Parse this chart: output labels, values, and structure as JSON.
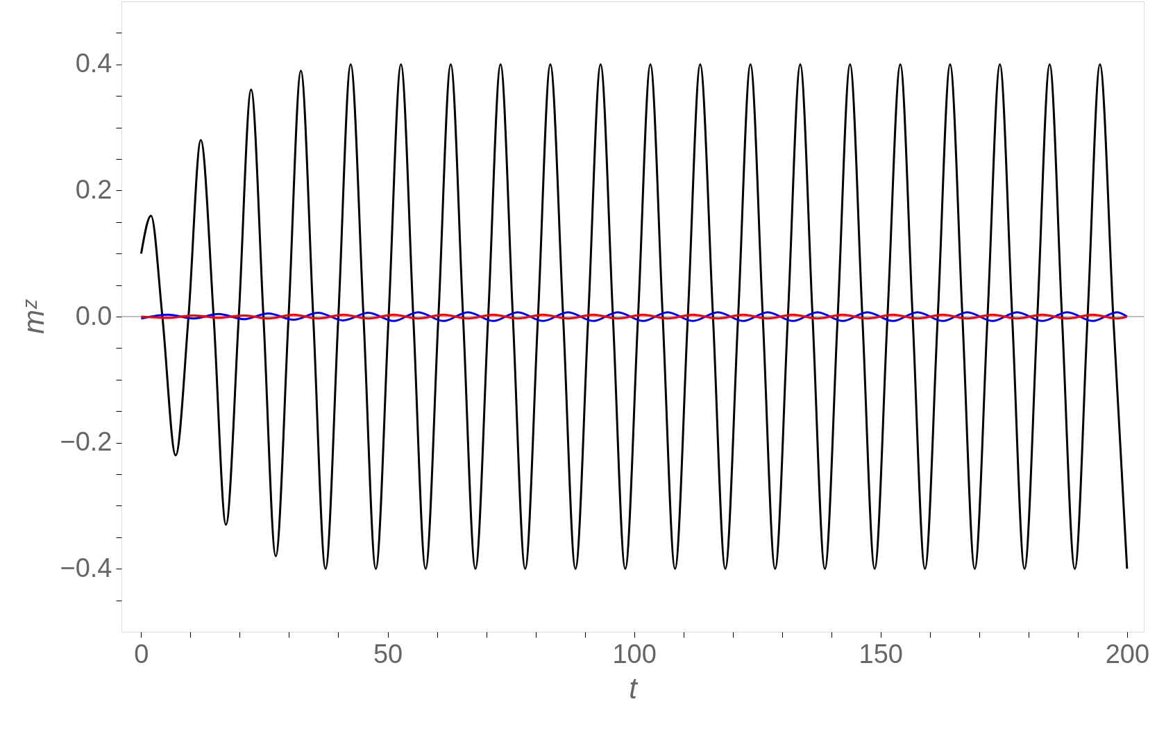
{
  "chart_data": {
    "type": "line",
    "xlabel": "t",
    "ylabel": "mᶻ",
    "xlim": [
      -4,
      203.4
    ],
    "ylim": [
      -0.5,
      0.5
    ],
    "xticks": [
      {
        "value": 0,
        "label": "0"
      },
      {
        "value": 10,
        "label": null
      },
      {
        "value": 20,
        "label": null
      },
      {
        "value": 30,
        "label": null
      },
      {
        "value": 40,
        "label": null
      },
      {
        "value": 50,
        "label": "50"
      },
      {
        "value": 60,
        "label": null
      },
      {
        "value": 70,
        "label": null
      },
      {
        "value": 80,
        "label": null
      },
      {
        "value": 90,
        "label": null
      },
      {
        "value": 100,
        "label": "100"
      },
      {
        "value": 110,
        "label": null
      },
      {
        "value": 120,
        "label": null
      },
      {
        "value": 130,
        "label": null
      },
      {
        "value": 140,
        "label": null
      },
      {
        "value": 150,
        "label": "150"
      },
      {
        "value": 160,
        "label": null
      },
      {
        "value": 170,
        "label": null
      },
      {
        "value": 180,
        "label": null
      },
      {
        "value": 190,
        "label": null
      },
      {
        "value": 200,
        "label": "200"
      }
    ],
    "yticks": [
      {
        "value": -0.45,
        "label": null
      },
      {
        "value": -0.4,
        "label": "−0.4"
      },
      {
        "value": -0.35,
        "label": null
      },
      {
        "value": -0.3,
        "label": null
      },
      {
        "value": -0.25,
        "label": null
      },
      {
        "value": -0.2,
        "label": "−0.2"
      },
      {
        "value": -0.15,
        "label": null
      },
      {
        "value": -0.1,
        "label": null
      },
      {
        "value": -0.05,
        "label": null
      },
      {
        "value": 0,
        "label": "0.0"
      },
      {
        "value": 0.05,
        "label": null
      },
      {
        "value": 0.1,
        "label": null
      },
      {
        "value": 0.15,
        "label": null
      },
      {
        "value": 0.2,
        "label": "0.2"
      },
      {
        "value": 0.25,
        "label": null
      },
      {
        "value": 0.3,
        "label": null
      },
      {
        "value": 0.35,
        "label": null
      },
      {
        "value": 0.4,
        "label": "0.4"
      },
      {
        "value": 0.45,
        "label": null
      }
    ],
    "marker": "none",
    "line_style": "solid",
    "ref_lines": [
      {
        "axis": "y",
        "value": 0,
        "label": null,
        "color": "#aaaaaa"
      }
    ],
    "series": [
      {
        "color": "#000000",
        "x": [
          0,
          2.0,
          4.3,
          7.0,
          9.6,
          12.1,
          14.7,
          17.2,
          19.8,
          22.3,
          24.8,
          27.3,
          29.9,
          32.4,
          34.9,
          37.4,
          40.0,
          42.5,
          45.1,
          47.6,
          50.2,
          52.7,
          55.2,
          57.7,
          60.3,
          62.8,
          65.3,
          67.8,
          70.4,
          72.9,
          75.4,
          77.9,
          80.5,
          83.0,
          85.6,
          88.1,
          90.7,
          93.2,
          95.7,
          98.2,
          100.8,
          103.3,
          105.8,
          108.3,
          110.9,
          113.4,
          116.0,
          118.5,
          121.1,
          123.6,
          126.1,
          128.6,
          131.2,
          133.7,
          136.2,
          138.7,
          141.3,
          143.8,
          146.3,
          148.8,
          151.4,
          154.0,
          156.5,
          159.0,
          161.6,
          164.1,
          166.6,
          169.1,
          171.7,
          174.2,
          176.7,
          179.2,
          181.8,
          184.3,
          186.8,
          189.4,
          192.0,
          194.5,
          197.2,
          200
        ],
        "values": [
          0.1,
          0.16,
          0,
          -0.22,
          0,
          0.28,
          0,
          -0.33,
          0,
          0.36,
          0,
          -0.38,
          0,
          0.39,
          0,
          -0.4,
          0,
          0.4,
          0,
          -0.4,
          0,
          0.4,
          0,
          -0.4,
          0,
          0.4,
          0,
          -0.4,
          0,
          0.4,
          0,
          -0.4,
          0,
          0.4,
          0,
          -0.4,
          0,
          0.4,
          0,
          -0.4,
          0,
          0.4,
          0,
          -0.4,
          0,
          0.4,
          0,
          -0.4,
          0,
          0.4,
          0,
          -0.4,
          0,
          0.4,
          0,
          -0.4,
          0,
          0.4,
          0,
          -0.4,
          0,
          0.4,
          0,
          -0.4,
          0,
          0.4,
          0,
          -0.4,
          0,
          0.4,
          0,
          -0.4,
          0,
          0.4,
          0,
          -0.4,
          0,
          0.4,
          0,
          -0.4
        ]
      },
      {
        "color": "#0000ff",
        "x": [
          0,
          5.5,
          10.6,
          15.7,
          20.8,
          25.8,
          30.9,
          35.9,
          41.0,
          46.1,
          51.2,
          56.2,
          61.3,
          66.3,
          71.4,
          76.4,
          81.5,
          86.6,
          91.7,
          96.7,
          101.8,
          106.8,
          111.9,
          117.0,
          122.1,
          127.1,
          132.2,
          137.2,
          142.3,
          147.3,
          152.5,
          157.5,
          162.6,
          167.6,
          172.7,
          177.7,
          182.8,
          187.9,
          193.0,
          198.0,
          200
        ],
        "values": [
          -0.003,
          0.003,
          -0.003,
          0.004,
          -0.004,
          0.005,
          -0.005,
          0.006,
          -0.006,
          0.006,
          -0.007,
          0.007,
          -0.007,
          0.007,
          -0.007,
          0.007,
          -0.007,
          0.007,
          -0.007,
          0.007,
          -0.007,
          0.007,
          -0.007,
          0.007,
          -0.007,
          0.007,
          -0.007,
          0.007,
          -0.007,
          0.007,
          -0.007,
          0.007,
          -0.007,
          0.007,
          -0.007,
          0.007,
          -0.007,
          0.007,
          -0.007,
          0.007,
          0
        ]
      },
      {
        "color": "#ff0000",
        "x": [
          0,
          5.5,
          10.6,
          15.7,
          20.8,
          25.8,
          30.9,
          35.9,
          41.0,
          46.1,
          51.2,
          56.2,
          61.3,
          66.3,
          71.4,
          76.4,
          81.5,
          86.6,
          91.7,
          96.7,
          101.8,
          106.8,
          111.9,
          117.0,
          122.1,
          127.1,
          132.2,
          137.2,
          142.3,
          147.3,
          152.5,
          157.5,
          162.6,
          167.6,
          172.7,
          177.7,
          182.8,
          187.9,
          193.0,
          198.0,
          200
        ],
        "values": [
          0,
          -0.002,
          0.002,
          -0.002,
          0.002,
          -0.003,
          0.003,
          -0.003,
          0.003,
          -0.003,
          0.003,
          -0.003,
          0.003,
          -0.003,
          0.003,
          -0.003,
          0.003,
          -0.003,
          0.003,
          -0.003,
          0.003,
          -0.003,
          0.003,
          -0.003,
          0.003,
          -0.003,
          0.003,
          -0.003,
          0.003,
          -0.003,
          0.003,
          -0.003,
          0.003,
          -0.003,
          0.003,
          -0.003,
          0.003,
          -0.003,
          0.003,
          -0.003,
          0
        ]
      }
    ]
  }
}
